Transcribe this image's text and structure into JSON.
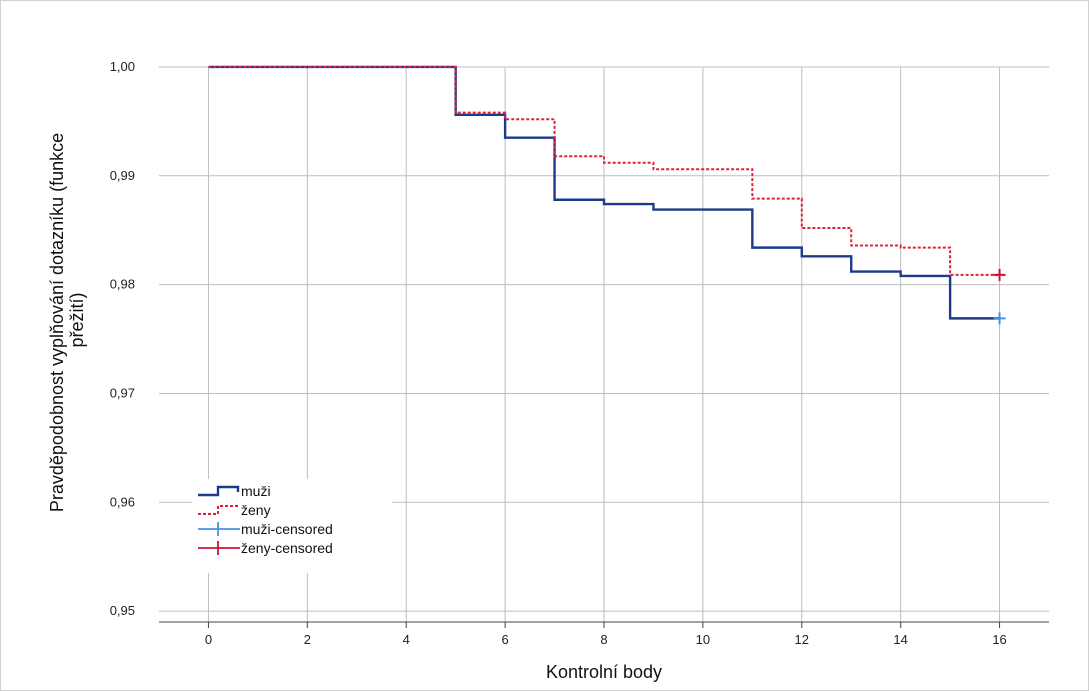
{
  "chart_data": {
    "type": "line",
    "title": "",
    "xlabel": "Kontrolní body",
    "ylabel_lines": [
      "Pravděpodobnost vyplňování dotazníku (funkce",
      "přežití)"
    ],
    "xlim": [
      -1,
      17
    ],
    "ylim": [
      0.949,
      1.0045
    ],
    "x_ticks": [
      0,
      2,
      4,
      6,
      8,
      10,
      12,
      14,
      16
    ],
    "x_tick_labels": [
      "0",
      "2",
      "4",
      "6",
      "8",
      "10",
      "12",
      "14",
      "16"
    ],
    "y_ticks": [
      0.95,
      0.96,
      0.97,
      0.98,
      0.99,
      1.0
    ],
    "y_tick_labels": [
      "0,95",
      "0,96",
      "0,97",
      "0,98",
      "0,99",
      "1,00"
    ],
    "grid": "vertical and horizontal",
    "legend_position": "bottom-left",
    "series": [
      {
        "name": "muži",
        "style": "step-solid",
        "color": "#1f3a8a",
        "x": [
          0,
          5,
          6,
          7,
          8,
          9,
          11,
          12,
          13,
          14,
          15,
          16
        ],
        "y": [
          1.0,
          0.9956,
          0.9935,
          0.9878,
          0.9874,
          0.9869,
          0.9834,
          0.9826,
          0.9812,
          0.9808,
          0.9769,
          0.9769
        ]
      },
      {
        "name": "ženy",
        "style": "step-dotted",
        "color": "#e0203c",
        "x": [
          0,
          5,
          6,
          7,
          8,
          9,
          11,
          12,
          13,
          14,
          15,
          16
        ],
        "y": [
          1.0,
          0.9958,
          0.9952,
          0.9918,
          0.9912,
          0.9906,
          0.9879,
          0.9852,
          0.9836,
          0.9834,
          0.9809,
          0.9809
        ]
      },
      {
        "name": "muži-censored",
        "style": "marker-plus",
        "color": "#4a90e2",
        "x": [
          16
        ],
        "y": [
          0.9769
        ]
      },
      {
        "name": "ženy-censored",
        "style": "marker-plus",
        "color": "#d0103a",
        "x": [
          16
        ],
        "y": [
          0.9809
        ]
      }
    ]
  }
}
